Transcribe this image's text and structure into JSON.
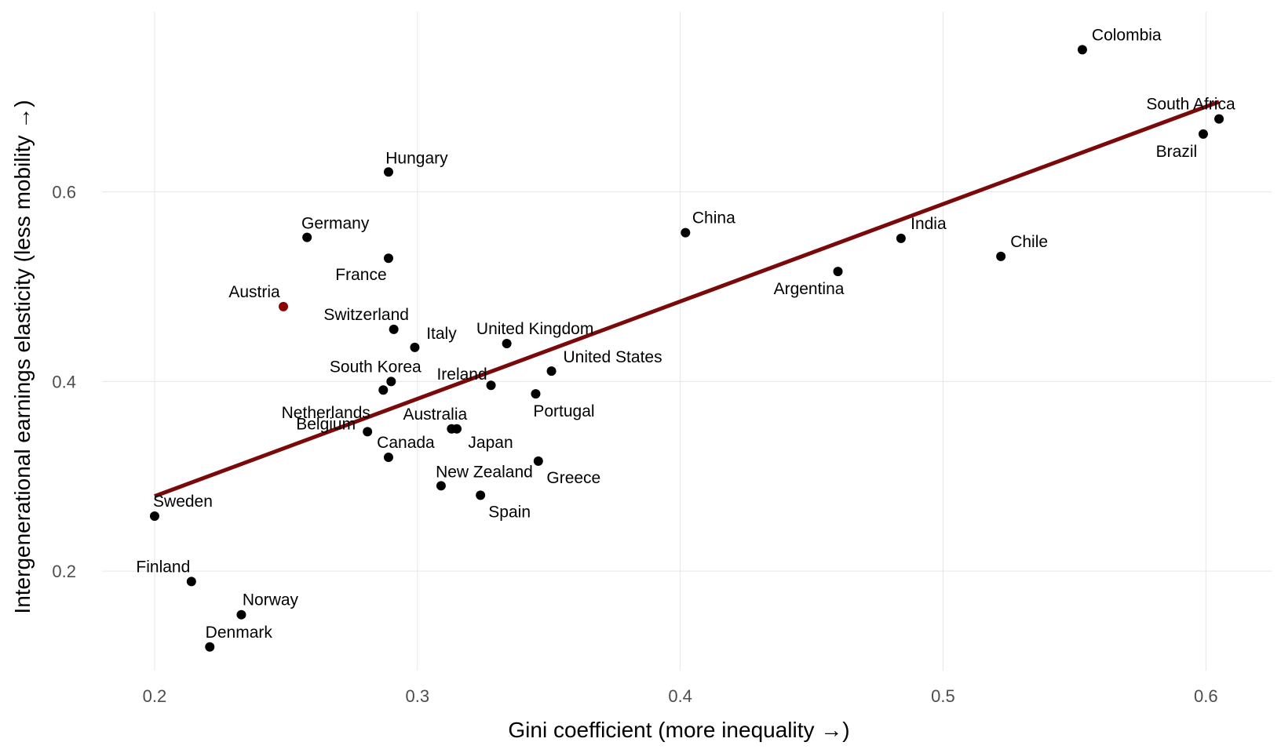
{
  "colors": {
    "points": "#000000",
    "highlight": "#8b0000",
    "fit_line": "#7a0a0a",
    "grid": "#e6e6e6",
    "tick_text": "#4d4d4d"
  },
  "chart_data": {
    "type": "scatter",
    "xlabel": "Gini coefficient (more inequality →)",
    "ylabel": "Intergenerational earnings elasticity (less mobility →)",
    "xlim": [
      0.18,
      0.625
    ],
    "ylim": [
      0.095,
      0.79
    ],
    "x_ticks": [
      0.2,
      0.3,
      0.4,
      0.5,
      0.6
    ],
    "x_tick_labels": [
      "0.2",
      "0.3",
      "0.4",
      "0.5",
      "0.6"
    ],
    "y_ticks": [
      0.2,
      0.4,
      0.6
    ],
    "y_tick_labels": [
      "0.2",
      "0.4",
      "0.6"
    ],
    "grid": true,
    "highlight": "Austria",
    "fit_line": {
      "x": [
        0.2,
        0.605
      ],
      "y": [
        0.279,
        0.695
      ]
    },
    "points": [
      {
        "name": "Colombia",
        "x": 0.553,
        "y": 0.75
      },
      {
        "name": "South Africa",
        "x": 0.605,
        "y": 0.677
      },
      {
        "name": "Brazil",
        "x": 0.599,
        "y": 0.661
      },
      {
        "name": "Hungary",
        "x": 0.289,
        "y": 0.621
      },
      {
        "name": "China",
        "x": 0.402,
        "y": 0.557
      },
      {
        "name": "Germany",
        "x": 0.258,
        "y": 0.552
      },
      {
        "name": "India",
        "x": 0.484,
        "y": 0.551
      },
      {
        "name": "Chile",
        "x": 0.522,
        "y": 0.532
      },
      {
        "name": "France",
        "x": 0.289,
        "y": 0.53
      },
      {
        "name": "Argentina",
        "x": 0.46,
        "y": 0.516
      },
      {
        "name": "Austria",
        "x": 0.249,
        "y": 0.479
      },
      {
        "name": "Switzerland",
        "x": 0.291,
        "y": 0.455
      },
      {
        "name": "United Kingdom",
        "x": 0.334,
        "y": 0.44
      },
      {
        "name": "Italy",
        "x": 0.299,
        "y": 0.436
      },
      {
        "name": "United States",
        "x": 0.351,
        "y": 0.411
      },
      {
        "name": "South Korea",
        "x": 0.29,
        "y": 0.4
      },
      {
        "name": "Ireland",
        "x": 0.328,
        "y": 0.396
      },
      {
        "name": "Netherlands",
        "x": 0.287,
        "y": 0.391
      },
      {
        "name": "Portugal",
        "x": 0.345,
        "y": 0.387
      },
      {
        "name": "Australia",
        "x": 0.313,
        "y": 0.35
      },
      {
        "name": "Japan",
        "x": 0.315,
        "y": 0.35
      },
      {
        "name": "Belgium",
        "x": 0.281,
        "y": 0.347
      },
      {
        "name": "Canada",
        "x": 0.289,
        "y": 0.32
      },
      {
        "name": "Greece",
        "x": 0.346,
        "y": 0.316
      },
      {
        "name": "New Zealand",
        "x": 0.309,
        "y": 0.29
      },
      {
        "name": "Spain",
        "x": 0.324,
        "y": 0.28
      },
      {
        "name": "Sweden",
        "x": 0.2,
        "y": 0.258
      },
      {
        "name": "Finland",
        "x": 0.214,
        "y": 0.189
      },
      {
        "name": "Norway",
        "x": 0.233,
        "y": 0.154
      },
      {
        "name": "Denmark",
        "x": 0.221,
        "y": 0.12
      }
    ]
  }
}
